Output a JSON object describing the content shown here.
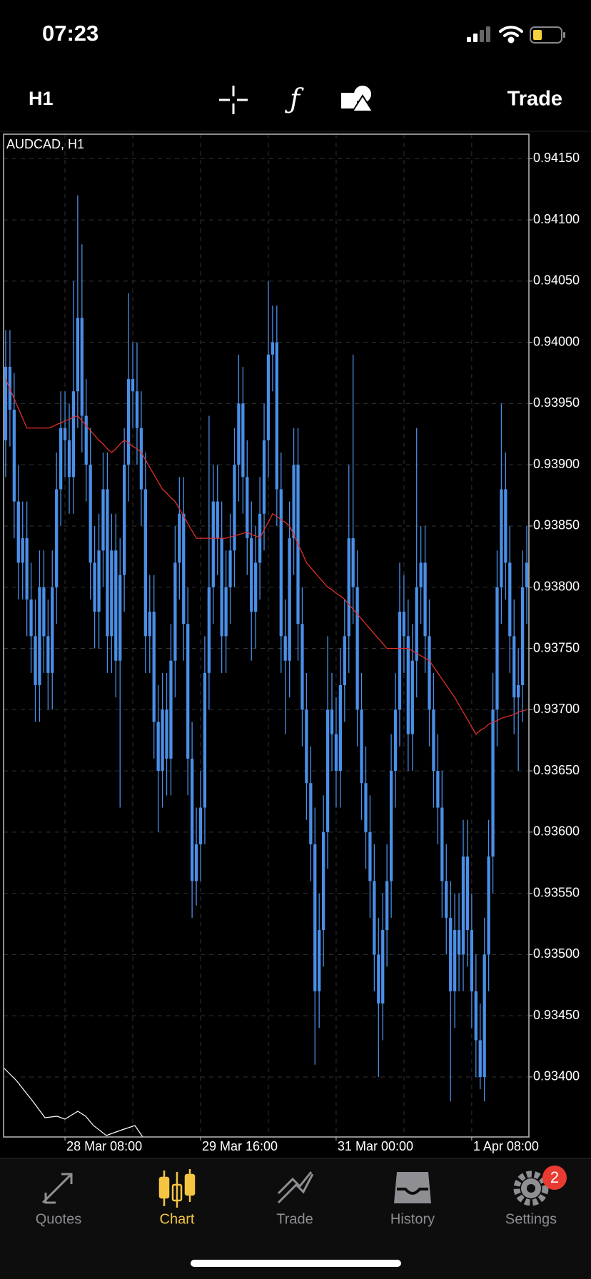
{
  "status": {
    "time": "07:23"
  },
  "toolbar": {
    "timeframe": "H1",
    "trade": "Trade"
  },
  "chart_data": {
    "type": "candlestick",
    "title": "AUDCAD, H1",
    "categories": [
      null,
      null,
      null,
      null,
      null,
      null,
      null,
      null,
      null,
      null,
      null,
      null,
      null,
      null,
      "28 Mar 08:00",
      null,
      null,
      null,
      null,
      null,
      null,
      null,
      null,
      null,
      null,
      null,
      null,
      null,
      null,
      null,
      null,
      null,
      null,
      null,
      null,
      null,
      null,
      null,
      null,
      null,
      null,
      null,
      null,
      null,
      null,
      null,
      "29 Mar 16:00",
      null,
      null,
      null,
      null,
      null,
      null,
      null,
      null,
      null,
      null,
      null,
      null,
      null,
      null,
      null,
      null,
      null,
      null,
      null,
      null,
      null,
      null,
      null,
      null,
      null,
      null,
      null,
      null,
      null,
      null,
      null,
      "31 Mar 00:00",
      null,
      null,
      null,
      null,
      null,
      null,
      null,
      null,
      null,
      null,
      null,
      null,
      null,
      null,
      null,
      null,
      null,
      null,
      null,
      null,
      null,
      null,
      null,
      null,
      null,
      null,
      null,
      null,
      null,
      null,
      null,
      "1 Apr 08:00",
      null,
      null,
      null,
      null,
      null,
      null,
      null,
      null,
      null,
      null,
      null,
      null,
      null
    ],
    "open": [
      0.9392,
      0.9398,
      0.93945,
      0.9387,
      0.9382,
      0.9384,
      0.9379,
      0.9376,
      0.9372,
      0.938,
      0.9376,
      0.9373,
      0.938,
      0.9388,
      0.9393,
      0.9392,
      0.9389,
      0.9396,
      0.9402,
      0.9394,
      0.939,
      0.9382,
      0.9378,
      0.9383,
      0.9388,
      0.9376,
      0.9383,
      0.9374,
      0.9381,
      0.939,
      0.9397,
      0.9396,
      0.9393,
      0.9388,
      0.9376,
      0.9378,
      0.9369,
      0.9365,
      0.937,
      0.9366,
      0.9374,
      0.9382,
      0.9386,
      0.9377,
      0.9366,
      0.9356,
      0.9359,
      0.9362,
      0.9373,
      0.938,
      0.9387,
      0.9384,
      0.9376,
      0.938,
      0.9383,
      0.939,
      0.9395,
      0.9389,
      0.9384,
      0.9378,
      0.9382,
      0.9386,
      0.9392,
      0.9399,
      0.94,
      0.9388,
      0.9376,
      0.9374,
      0.9384,
      0.939,
      0.9377,
      0.937,
      0.9364,
      0.9359,
      0.9347,
      0.9352,
      0.936,
      0.937,
      0.9368,
      0.9365,
      0.9372,
      0.9376,
      0.9384,
      0.938,
      0.937,
      0.9364,
      0.936,
      0.9356,
      0.935,
      0.9346,
      0.9352,
      0.9356,
      0.9365,
      0.937,
      0.9378,
      0.9376,
      0.9368,
      0.9374,
      0.938,
      0.9382,
      0.9376,
      0.937,
      0.9365,
      0.9362,
      0.9356,
      0.9353,
      0.9347,
      0.9352,
      0.935,
      0.9358,
      0.9352,
      0.9347,
      0.9343,
      0.934,
      0.935,
      0.9358,
      0.937,
      0.938,
      0.9388,
      0.9382,
      0.9376,
      0.9371,
      0.9372,
      0.938
    ],
    "high": [
      0.9401,
      0.9401,
      0.93975,
      0.939,
      0.9387,
      0.9387,
      0.9382,
      0.9379,
      0.9383,
      0.9383,
      0.9379,
      0.9383,
      0.9391,
      0.9396,
      0.9396,
      0.9395,
      0.9405,
      0.9412,
      0.9408,
      0.9397,
      0.9393,
      0.9385,
      0.9386,
      0.9391,
      0.9391,
      0.9386,
      0.9386,
      0.9384,
      0.9393,
      0.9404,
      0.94,
      0.94,
      0.9396,
      0.9391,
      0.9381,
      0.9381,
      0.9372,
      0.9373,
      0.9373,
      0.9377,
      0.9385,
      0.9389,
      0.9389,
      0.938,
      0.9369,
      0.9362,
      0.9365,
      0.9376,
      0.9394,
      0.939,
      0.939,
      0.9387,
      0.9383,
      0.9386,
      0.9393,
      0.9399,
      0.9398,
      0.9392,
      0.9387,
      0.9385,
      0.9389,
      0.9395,
      0.9405,
      0.9403,
      0.9403,
      0.9391,
      0.9379,
      0.9387,
      0.9393,
      0.9393,
      0.938,
      0.9373,
      0.9367,
      0.9362,
      0.9355,
      0.9363,
      0.9376,
      0.9373,
      0.9371,
      0.9375,
      0.9379,
      0.939,
      0.9399,
      0.9383,
      0.9373,
      0.9367,
      0.9363,
      0.9359,
      0.9353,
      0.9355,
      0.9359,
      0.9368,
      0.9373,
      0.9382,
      0.9381,
      0.9379,
      0.9377,
      0.9393,
      0.9385,
      0.9385,
      0.9379,
      0.9373,
      0.9368,
      0.9365,
      0.9359,
      0.9356,
      0.9355,
      0.9355,
      0.9361,
      0.9361,
      0.9355,
      0.935,
      0.9346,
      0.9353,
      0.9361,
      0.9373,
      0.9383,
      0.9395,
      0.9391,
      0.9385,
      0.9379,
      0.9375,
      0.9383,
      0.9385
    ],
    "low": [
      0.9389,
      0.93915,
      0.9384,
      0.9379,
      0.9379,
      0.9376,
      0.9373,
      0.9369,
      0.9369,
      0.9373,
      0.937,
      0.937,
      0.9377,
      0.9385,
      0.9389,
      0.9386,
      0.9386,
      0.9393,
      0.9391,
      0.9387,
      0.9379,
      0.9375,
      0.9375,
      0.938,
      0.9373,
      0.9373,
      0.9371,
      0.9362,
      0.9378,
      0.9387,
      0.9393,
      0.939,
      0.9385,
      0.9373,
      0.9373,
      0.9366,
      0.936,
      0.9362,
      0.9363,
      0.9363,
      0.9371,
      0.9379,
      0.9374,
      0.9363,
      0.9353,
      0.9354,
      0.9356,
      0.9359,
      0.937,
      0.9377,
      0.9381,
      0.9373,
      0.9373,
      0.9377,
      0.938,
      0.9387,
      0.9386,
      0.9381,
      0.9374,
      0.9375,
      0.9379,
      0.9383,
      0.9389,
      0.9396,
      0.9385,
      0.9373,
      0.9368,
      0.9371,
      0.9381,
      0.9374,
      0.9367,
      0.9361,
      0.9356,
      0.9341,
      0.9344,
      0.9349,
      0.9357,
      0.9365,
      0.9362,
      0.9362,
      0.9369,
      0.9373,
      0.9377,
      0.9367,
      0.9361,
      0.9357,
      0.9353,
      0.9347,
      0.934,
      0.9343,
      0.9349,
      0.9353,
      0.9362,
      0.9367,
      0.9373,
      0.9365,
      0.9365,
      0.9371,
      0.9377,
      0.9373,
      0.9367,
      0.9362,
      0.9359,
      0.9353,
      0.935,
      0.9338,
      0.9344,
      0.9347,
      0.9347,
      0.9349,
      0.9344,
      0.934,
      0.9339,
      0.9338,
      0.9347,
      0.9355,
      0.9367,
      0.9377,
      0.9379,
      0.9373,
      0.9368,
      0.9365,
      0.9369,
      0.9377
    ],
    "close": [
      0.9398,
      0.93945,
      0.9387,
      0.9382,
      0.9384,
      0.9379,
      0.9376,
      0.9372,
      0.938,
      0.9376,
      0.9373,
      0.938,
      0.9388,
      0.9393,
      0.9392,
      0.9389,
      0.9396,
      0.9402,
      0.9394,
      0.939,
      0.9382,
      0.9378,
      0.9383,
      0.9388,
      0.9376,
      0.9383,
      0.9374,
      0.9381,
      0.939,
      0.9397,
      0.9396,
      0.9393,
      0.9388,
      0.9376,
      0.9378,
      0.9369,
      0.9365,
      0.937,
      0.9366,
      0.9374,
      0.9382,
      0.9386,
      0.9377,
      0.9366,
      0.9356,
      0.9359,
      0.9362,
      0.9373,
      0.938,
      0.9387,
      0.9384,
      0.9376,
      0.938,
      0.9383,
      0.939,
      0.9395,
      0.9389,
      0.9384,
      0.9378,
      0.9382,
      0.9386,
      0.9392,
      0.9399,
      0.94,
      0.9388,
      0.9376,
      0.9374,
      0.9384,
      0.939,
      0.9377,
      0.937,
      0.9364,
      0.9359,
      0.9347,
      0.9352,
      0.936,
      0.937,
      0.9368,
      0.9365,
      0.9372,
      0.9376,
      0.9384,
      0.938,
      0.937,
      0.9364,
      0.936,
      0.9356,
      0.935,
      0.9346,
      0.9352,
      0.9356,
      0.9365,
      0.937,
      0.9378,
      0.9376,
      0.9368,
      0.9374,
      0.938,
      0.9382,
      0.9376,
      0.937,
      0.9365,
      0.9362,
      0.9356,
      0.9353,
      0.9347,
      0.9352,
      0.935,
      0.9358,
      0.9352,
      0.9347,
      0.9343,
      0.934,
      0.935,
      0.9358,
      0.937,
      0.938,
      0.9388,
      0.9382,
      0.9376,
      0.9371,
      0.9372,
      0.938,
      0.9382
    ],
    "ma": {
      "color": "#e0302a",
      "values": [
        0.9397,
        0.93962,
        0.93954,
        0.93946,
        0.93938,
        0.9393,
        0.9393,
        0.9393,
        0.9393,
        0.9393,
        0.9393,
        0.93931,
        0.93933,
        0.93934,
        0.93936,
        0.93937,
        0.93939,
        0.9394,
        0.93936,
        0.93932,
        0.93928,
        0.93924,
        0.9392,
        0.93917,
        0.93913,
        0.9391,
        0.93913,
        0.93917,
        0.9392,
        0.93918,
        0.93915,
        0.93913,
        0.9391,
        0.93904,
        0.93898,
        0.93892,
        0.93886,
        0.9388,
        0.93877,
        0.93873,
        0.9387,
        0.93864,
        0.93858,
        0.93852,
        0.93846,
        0.9384,
        0.9384,
        0.9384,
        0.9384,
        0.9384,
        0.9384,
        0.9384,
        0.9384,
        0.93841,
        0.93842,
        0.93843,
        0.93844,
        0.93845,
        0.93843,
        0.93842,
        0.9384,
        0.93847,
        0.93853,
        0.9386,
        0.93858,
        0.93855,
        0.93853,
        0.9385,
        0.93843,
        0.93835,
        0.93828,
        0.9382,
        0.93816,
        0.93812,
        0.93808,
        0.93804,
        0.938,
        0.93798,
        0.93795,
        0.93793,
        0.9379,
        0.93786,
        0.93782,
        0.93778,
        0.93774,
        0.9377,
        0.93766,
        0.93762,
        0.93758,
        0.93754,
        0.9375,
        0.9375,
        0.9375,
        0.9375,
        0.9375,
        0.9375,
        0.93748,
        0.93746,
        0.93744,
        0.93742,
        0.9374,
        0.93735,
        0.9373,
        0.93725,
        0.9372,
        0.93715,
        0.9371,
        0.93704,
        0.93698,
        0.93692,
        0.93686,
        0.9368,
        0.93683,
        0.93685,
        0.93688,
        0.9369,
        0.93691,
        0.93693,
        0.93694,
        0.93695,
        0.93696,
        0.93698,
        0.93699,
        0.937
      ]
    },
    "color": "#4a8fe7",
    "ylim": [
      0.93351,
      0.9417
    ],
    "yticks": [
      {
        "value": 0.9415,
        "label": "0.94150"
      },
      {
        "value": 0.941,
        "label": "0.94100"
      },
      {
        "value": 0.9405,
        "label": "0.94050"
      },
      {
        "value": 0.94,
        "label": "0.94000"
      },
      {
        "value": 0.9395,
        "label": "0.93950"
      },
      {
        "value": 0.939,
        "label": "0.93900"
      },
      {
        "value": 0.9385,
        "label": "0.93850"
      },
      {
        "value": 0.938,
        "label": "0.93800"
      },
      {
        "value": 0.9375,
        "label": "0.93750"
      },
      {
        "value": 0.937,
        "label": "0.93700"
      },
      {
        "value": 0.9365,
        "label": "0.93650"
      },
      {
        "value": 0.936,
        "label": "0.93600"
      },
      {
        "value": 0.9355,
        "label": "0.93550"
      },
      {
        "value": 0.935,
        "label": "0.93500"
      },
      {
        "value": 0.9345,
        "label": "0.93450"
      },
      {
        "value": 0.934,
        "label": "0.93400"
      }
    ],
    "grid": true
  },
  "tabs": [
    {
      "label": "Quotes"
    },
    {
      "label": "Chart"
    },
    {
      "label": "Trade"
    },
    {
      "label": "History"
    },
    {
      "label": "Settings",
      "badge": 2
    }
  ]
}
